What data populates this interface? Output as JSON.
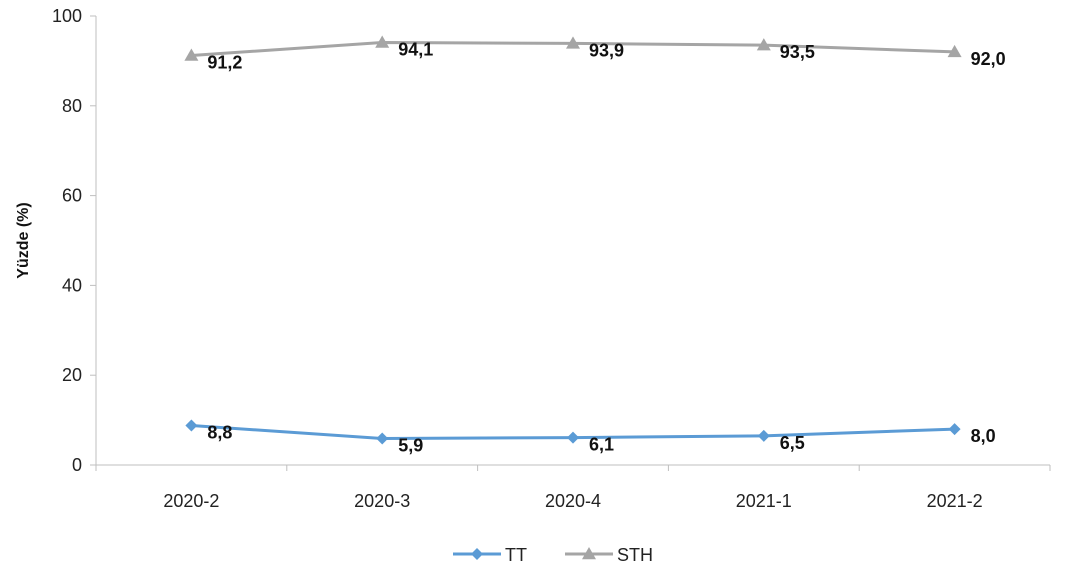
{
  "chart_data": {
    "type": "line",
    "title": "",
    "xlabel": "",
    "ylabel": "Yüzde  (%)",
    "ylim": [
      0,
      100
    ],
    "yticks": [
      0,
      20,
      40,
      60,
      80,
      100
    ],
    "categories": [
      "2020-2",
      "2020-3",
      "2020-4",
      "2021-1",
      "2021-2"
    ],
    "grid": false,
    "legend_position": "bottom",
    "series": [
      {
        "name": "TT",
        "color": "#5b9bd5",
        "marker": "diamond",
        "values": [
          8.8,
          5.9,
          6.1,
          6.5,
          8.0
        ],
        "labels": [
          "8,8",
          "5,9",
          "6,1",
          "6,5",
          "8,0"
        ]
      },
      {
        "name": "STH",
        "color": "#a5a5a5",
        "marker": "triangle",
        "values": [
          91.2,
          94.1,
          93.9,
          93.5,
          92.0
        ],
        "labels": [
          "91,2",
          "94,1",
          "93,9",
          "93,5",
          "92,0"
        ]
      }
    ]
  }
}
